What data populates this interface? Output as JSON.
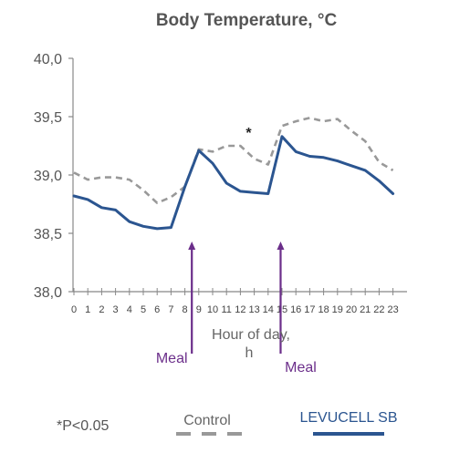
{
  "chart_data": {
    "type": "line",
    "title": "Body Temperature, °C",
    "xlabel": "Hour of day,",
    "xlabel_unit": "h",
    "x": [
      0,
      1,
      2,
      3,
      4,
      5,
      6,
      7,
      8,
      9,
      10,
      11,
      12,
      13,
      14,
      15,
      16,
      17,
      18,
      19,
      20,
      21,
      22,
      23
    ],
    "x_tick_labels": [
      "0",
      "1",
      "2",
      "3",
      "4",
      "5",
      "6",
      "7",
      "8",
      "9",
      "10",
      "11",
      "12",
      "13",
      "14",
      "15",
      "16",
      "17",
      "18",
      "19",
      "20",
      "21",
      "22",
      "23"
    ],
    "ylim": [
      38.0,
      40.0
    ],
    "y_ticks": [
      38.0,
      38.5,
      39.0,
      39.5,
      40.0
    ],
    "y_tick_labels": [
      "38,0",
      "38,5",
      "39,0",
      "39,5",
      "40,0"
    ],
    "grid": false,
    "series": [
      {
        "name": "Control",
        "color": "#999999",
        "style": "dashed",
        "values": [
          39.02,
          38.96,
          38.98,
          38.98,
          38.96,
          38.87,
          38.76,
          38.81,
          38.9,
          39.22,
          39.2,
          39.25,
          39.25,
          39.14,
          39.09,
          39.42,
          39.46,
          39.49,
          39.46,
          39.48,
          39.38,
          39.29,
          39.11,
          39.04
        ]
      },
      {
        "name": "LEVUCELL SB",
        "color": "#2b5590",
        "style": "solid",
        "values": [
          38.82,
          38.79,
          38.72,
          38.7,
          38.6,
          38.56,
          38.54,
          38.55,
          38.9,
          39.21,
          39.1,
          38.93,
          38.86,
          38.85,
          38.84,
          39.33,
          39.2,
          39.16,
          39.15,
          39.12,
          39.08,
          39.04,
          38.95,
          38.84
        ]
      }
    ],
    "annotations": [
      {
        "text": "*",
        "x": 12.6,
        "y": 39.32,
        "color": "#222222"
      },
      {
        "text": "Meal",
        "arrow_at_hour": 8.5,
        "color": "#6b2e8a"
      },
      {
        "text": "Meal",
        "arrow_at_hour": 14.9,
        "color": "#6b2e8a"
      }
    ],
    "footnote": "*P<0.05",
    "legend_position": "bottom"
  }
}
